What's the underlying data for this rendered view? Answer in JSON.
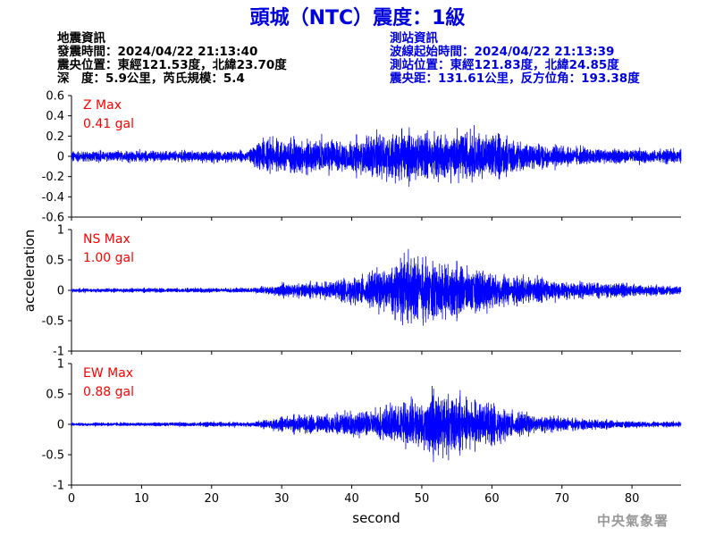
{
  "title": "頭城（NTC）震度：1級",
  "info_left": {
    "heading": "地震資訊",
    "origin_time": "發震時間：2024/04/22 21:13:40",
    "epicenter": "震央位置：東經121.53度，北緯23.70度",
    "depth_magnitude": "深　度：5.9公里，芮氏規模：5.4"
  },
  "info_right": {
    "heading": "測站資訊",
    "wave_start": "波線起始時間：2024/04/22 21:13:39",
    "station_location": "測站位置：東經121.83度，北緯24.85度",
    "distance_azimuth": "震央距：131.61公里，反方位角：193.38度"
  },
  "agency": "中央氣象署",
  "colors": {
    "trace": "#0000ff",
    "title": "#0000dd",
    "max_label": "#ff0000"
  },
  "chart_data": {
    "type": "line",
    "xlabel": "second",
    "ylabel": "acceleration",
    "xlim": [
      0,
      87
    ],
    "x_ticks": [
      0,
      10,
      20,
      30,
      40,
      50,
      60,
      70,
      80
    ],
    "panels": [
      {
        "component": "Z",
        "max_label": "Z Max",
        "max_value": "0.41 gal",
        "ylim": [
          -0.6,
          0.6
        ],
        "y_ticks": [
          0.6,
          0.4,
          0.2,
          0,
          -0.2,
          -0.4,
          -0.6
        ],
        "y_tick_labels": [
          "0.6",
          "0.4",
          "0.2",
          "0",
          "-0.2",
          "-0.4",
          "-0.6"
        ],
        "envelope": {
          "t": [
            0,
            25,
            27,
            32,
            40,
            45,
            50,
            55,
            60,
            65,
            70,
            75,
            80,
            87
          ],
          "amp": [
            0.08,
            0.08,
            0.22,
            0.26,
            0.24,
            0.34,
            0.34,
            0.34,
            0.32,
            0.22,
            0.14,
            0.12,
            0.1,
            0.09
          ]
        }
      },
      {
        "component": "NS",
        "max_label": "NS Max",
        "max_value": "1.00 gal",
        "ylim": [
          -1,
          1
        ],
        "y_ticks": [
          1,
          0.5,
          0,
          -0.5,
          -1
        ],
        "y_tick_labels": [
          "1",
          "0.5",
          "0",
          "-0.5",
          "-1"
        ],
        "envelope": {
          "t": [
            0,
            26,
            30,
            38,
            44,
            48,
            52,
            56,
            60,
            65,
            70,
            75,
            80,
            87
          ],
          "amp": [
            0.05,
            0.06,
            0.15,
            0.22,
            0.5,
            0.8,
            0.7,
            0.6,
            0.45,
            0.32,
            0.22,
            0.18,
            0.14,
            0.12
          ]
        }
      },
      {
        "component": "EW",
        "max_label": "EW Max",
        "max_value": "0.88 gal",
        "ylim": [
          -1,
          1
        ],
        "y_ticks": [
          1,
          0.5,
          0,
          -0.5,
          -1
        ],
        "y_tick_labels": [
          "1",
          "0.5",
          "0",
          "-0.5",
          "-1"
        ],
        "envelope": {
          "t": [
            0,
            26,
            30,
            40,
            45,
            50,
            53,
            57,
            62,
            66,
            70,
            75,
            80,
            87
          ],
          "amp": [
            0.04,
            0.06,
            0.18,
            0.28,
            0.42,
            0.6,
            0.78,
            0.58,
            0.38,
            0.22,
            0.16,
            0.12,
            0.08,
            0.07
          ]
        }
      }
    ]
  }
}
